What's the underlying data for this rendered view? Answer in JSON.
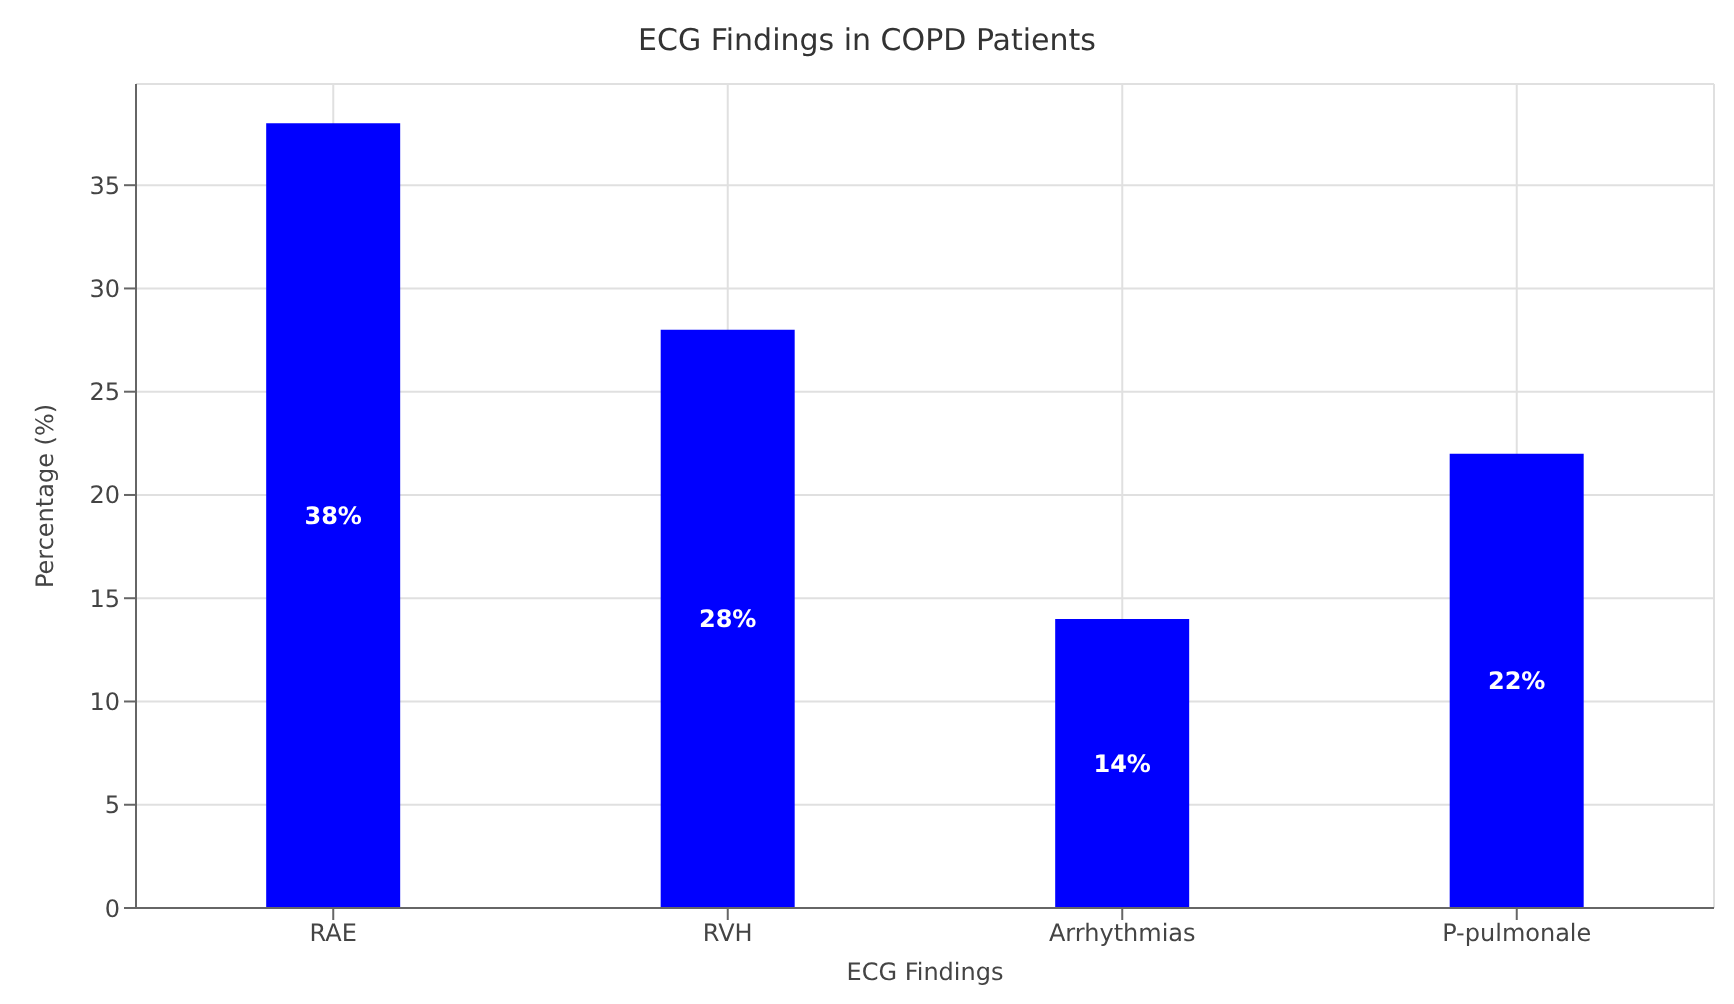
{
  "chart_data": {
    "type": "bar",
    "title": "ECG Findings in COPD Patients",
    "xlabel": "ECG Findings",
    "ylabel": "Percentage (%)",
    "categories": [
      "RAE",
      "RVH",
      "Arrhythmias",
      "P-pulmonale"
    ],
    "values": [
      38,
      28,
      14,
      22
    ],
    "value_labels": [
      "38%",
      "28%",
      "14%",
      "22%"
    ],
    "color": "#0000ff",
    "ylim": [
      0,
      39.9
    ],
    "yticks": [
      0,
      5,
      10,
      15,
      20,
      25,
      30,
      35
    ],
    "grid": true
  }
}
